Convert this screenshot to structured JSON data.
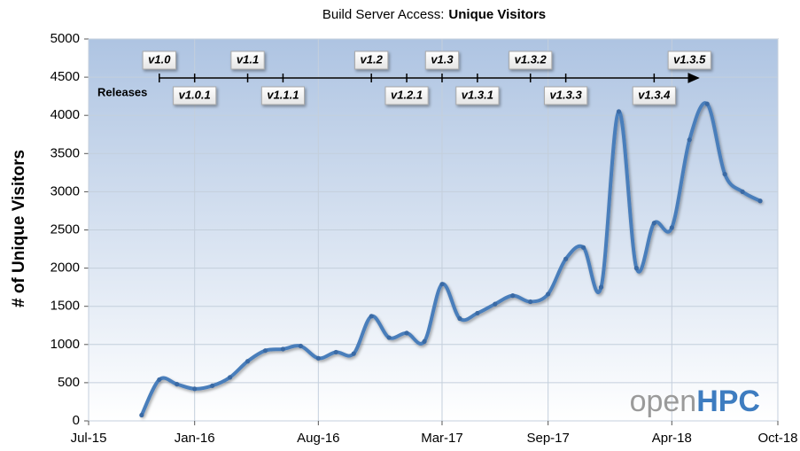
{
  "chart_data": {
    "type": "line",
    "title": "Build Server Access:",
    "title_bold": "Unique Visitors",
    "y_label": "# of Unique Visitors",
    "x": [
      "2015-10",
      "2015-11",
      "2015-12",
      "2016-01",
      "2016-02",
      "2016-03",
      "2016-04",
      "2016-05",
      "2016-06",
      "2016-07",
      "2016-08",
      "2016-09",
      "2016-10",
      "2016-11",
      "2016-12",
      "2017-01",
      "2017-02",
      "2017-03",
      "2017-04",
      "2017-05",
      "2017-06",
      "2017-07",
      "2017-08",
      "2017-09",
      "2017-10",
      "2017-11",
      "2017-12",
      "2018-01",
      "2018-02",
      "2018-03",
      "2018-04",
      "2018-05",
      "2018-06",
      "2018-07",
      "2018-08",
      "2018-09"
    ],
    "series": [
      {
        "name": "Unique Visitors",
        "color": "#4a7ebb",
        "values": [
          75,
          540,
          480,
          420,
          460,
          570,
          780,
          920,
          940,
          980,
          820,
          900,
          880,
          1370,
          1090,
          1150,
          1040,
          1790,
          1340,
          1410,
          1530,
          1640,
          1560,
          1660,
          2120,
          2270,
          1750,
          4050,
          2000,
          2590,
          2530,
          3680,
          4150,
          3230,
          3000,
          2880
        ]
      }
    ],
    "xlim": [
      "2015-07",
      "2018-10"
    ],
    "xticks": [
      {
        "value": "2015-07",
        "label": "Jul-15"
      },
      {
        "value": "2016-01",
        "label": "Jan-16"
      },
      {
        "value": "2016-08",
        "label": "Aug-16"
      },
      {
        "value": "2017-03",
        "label": "Mar-17"
      },
      {
        "value": "2017-09",
        "label": "Sep-17"
      },
      {
        "value": "2018-04",
        "label": "Apr-18"
      },
      {
        "value": "2018-10",
        "label": "Oct-18"
      }
    ],
    "ylim": [
      0,
      5000
    ],
    "yticks": [
      0,
      500,
      1000,
      1500,
      2000,
      2500,
      3000,
      3500,
      4000,
      4500,
      5000
    ],
    "grid": true,
    "releases_label": "Releases",
    "releases": [
      {
        "name": "v1.0",
        "x": "2015-11",
        "side": "top",
        "color": "#000000"
      },
      {
        "name": "v1.0.1",
        "x": "2016-01",
        "side": "bottom",
        "color": "#000000"
      },
      {
        "name": "v1.1",
        "x": "2016-04",
        "side": "top",
        "color": "#4a74a8"
      },
      {
        "name": "v1.1.1",
        "x": "2016-06",
        "side": "bottom",
        "color": "#4a74a8"
      },
      {
        "name": "v1.2",
        "x": "2016-11",
        "side": "top",
        "color": "#c00000"
      },
      {
        "name": "v1.2.1",
        "x": "2017-01",
        "side": "bottom",
        "color": "#c00000"
      },
      {
        "name": "v1.3",
        "x": "2017-03",
        "side": "top",
        "color": "#4f6228"
      },
      {
        "name": "v1.3.1",
        "x": "2017-05",
        "side": "bottom",
        "color": "#4f6228"
      },
      {
        "name": "v1.3.2",
        "x": "2017-08",
        "side": "top",
        "color": "#4f6228"
      },
      {
        "name": "v1.3.3",
        "x": "2017-10",
        "side": "bottom",
        "color": "#4f6228"
      },
      {
        "name": "v1.3.4",
        "x": "2018-03",
        "side": "bottom",
        "color": "#4f6228"
      },
      {
        "name": "v1.3.5",
        "x": "2018-05",
        "side": "top",
        "color": "#4f6228"
      }
    ],
    "logo": {
      "light": "open",
      "bold": "HPC"
    }
  }
}
